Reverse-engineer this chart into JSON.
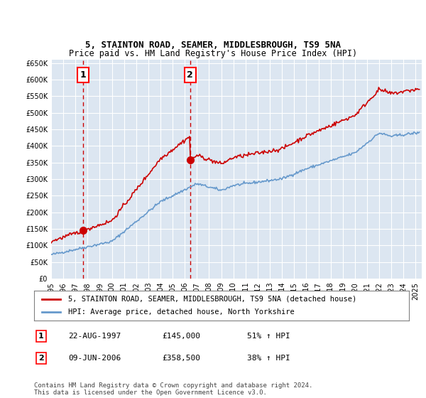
{
  "title1": "5, STAINTON ROAD, SEAMER, MIDDLESBROUGH, TS9 5NA",
  "title2": "Price paid vs. HM Land Registry's House Price Index (HPI)",
  "legend_label1": "5, STAINTON ROAD, SEAMER, MIDDLESBROUGH, TS9 5NA (detached house)",
  "legend_label2": "HPI: Average price, detached house, North Yorkshire",
  "annotation1_date": "22-AUG-1997",
  "annotation1_price": "£145,000",
  "annotation1_hpi": "51% ↑ HPI",
  "annotation1_year": 1997.64,
  "annotation1_value": 145000,
  "annotation2_date": "09-JUN-2006",
  "annotation2_price": "£358,500",
  "annotation2_hpi": "38% ↑ HPI",
  "annotation2_year": 2006.44,
  "annotation2_value": 358500,
  "ylim": [
    0,
    660000
  ],
  "yticks": [
    0,
    50000,
    100000,
    150000,
    200000,
    250000,
    300000,
    350000,
    400000,
    450000,
    500000,
    550000,
    600000,
    650000
  ],
  "xlim_start": 1995.0,
  "xlim_end": 2025.5,
  "line1_color": "#cc0000",
  "line2_color": "#6699cc",
  "vline_color": "#cc0000",
  "background_color": "#dce6f1",
  "plot_background": "#ffffff",
  "footer": "Contains HM Land Registry data © Crown copyright and database right 2024.\nThis data is licensed under the Open Government Licence v3.0."
}
